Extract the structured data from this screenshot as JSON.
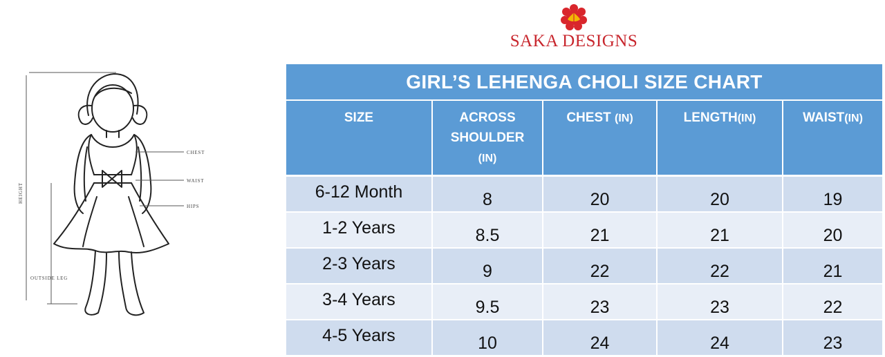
{
  "brand": {
    "name": "SAKA DESIGNS",
    "logo_icon": "lotus-icon",
    "color": "#c8262d"
  },
  "figure": {
    "labels": {
      "chest": "CHEST",
      "waist": "WAIST",
      "hips": "HIPS",
      "height": "HEIGHT",
      "outside_leg": "OUTSIDE LEG"
    }
  },
  "chart": {
    "title": "GIRL’S LEHENGA CHOLI SIZE CHART",
    "header_color": "#5b9bd5",
    "row_colors": [
      "#cfdcee",
      "#e8eef7"
    ],
    "headers": {
      "size": "SIZE",
      "shoulder_1": "ACROSS",
      "shoulder_2": "SHOULDER",
      "shoulder_unit": "(IN)",
      "chest": "CHEST",
      "chest_unit": "(IN)",
      "length": "LENGTH",
      "length_unit": "(IN)",
      "waist": "WAIST",
      "waist_unit": "(IN)"
    },
    "rows": [
      {
        "size": "6-12 Month",
        "shoulder": "8",
        "chest": "20",
        "length": "20",
        "waist": "19"
      },
      {
        "size": "1-2 Years",
        "shoulder": "8.5",
        "chest": "21",
        "length": "21",
        "waist": "20"
      },
      {
        "size": "2-3 Years",
        "shoulder": "9",
        "chest": "22",
        "length": "22",
        "waist": "21"
      },
      {
        "size": "3-4 Years",
        "shoulder": "9.5",
        "chest": "23",
        "length": "23",
        "waist": "22"
      },
      {
        "size": "4-5 Years",
        "shoulder": "10",
        "chest": "24",
        "length": "24",
        "waist": "23"
      }
    ]
  }
}
